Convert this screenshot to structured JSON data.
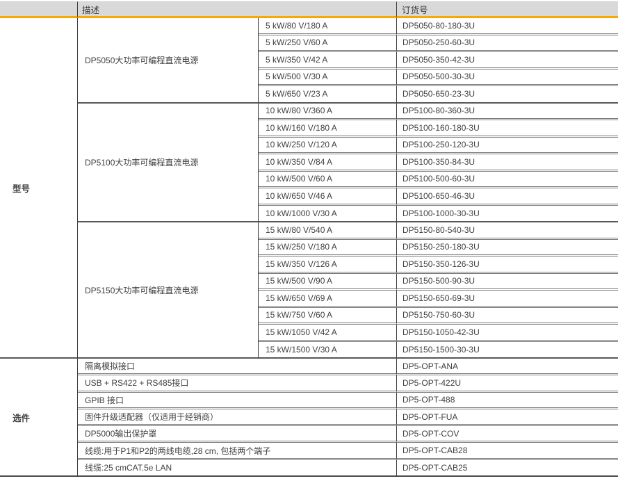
{
  "page": {
    "headers": {
      "description": "描述",
      "order_number": "订货号"
    },
    "model_section": {
      "label": "型号",
      "groups": [
        {
          "description": "DP5050大功率可编程直流电源",
          "rows": [
            {
              "spec": "5 kW/80 V/180 A",
              "order": "DP5050-80-180-3U"
            },
            {
              "spec": "5 kW/250 V/60 A",
              "order": "DP5050-250-60-3U"
            },
            {
              "spec": "5 kW/350 V/42 A",
              "order": "DP5050-350-42-3U"
            },
            {
              "spec": "5 kW/500 V/30 A",
              "order": "DP5050-500-30-3U"
            },
            {
              "spec": "5 kW/650 V/23 A",
              "order": "DP5050-650-23-3U"
            }
          ]
        },
        {
          "description": "DP5100大功率可编程直流电源",
          "rows": [
            {
              "spec": "10 kW/80 V/360 A",
              "order": "DP5100-80-360-3U"
            },
            {
              "spec": "10 kW/160 V/180 A",
              "order": "DP5100-160-180-3U"
            },
            {
              "spec": "10 kW/250 V/120 A",
              "order": "DP5100-250-120-3U"
            },
            {
              "spec": "10 kW/350 V/84 A",
              "order": "DP5100-350-84-3U"
            },
            {
              "spec": "10 kW/500 V/60 A",
              "order": "DP5100-500-60-3U"
            },
            {
              "spec": "10 kW/650 V/46 A",
              "order": "DP5100-650-46-3U"
            },
            {
              "spec": "10 kW/1000 V/30 A",
              "order": "DP5100-1000-30-3U"
            }
          ]
        },
        {
          "description": "DP5150大功率可编程直流电源",
          "rows": [
            {
              "spec": "15 kW/80 V/540 A",
              "order": "DP5150-80-540-3U"
            },
            {
              "spec": "15 kW/250 V/180 A",
              "order": "DP5150-250-180-3U"
            },
            {
              "spec": "15 kW/350 V/126 A",
              "order": "DP5150-350-126-3U"
            },
            {
              "spec": "15 kW/500 V/90 A",
              "order": "DP5150-500-90-3U"
            },
            {
              "spec": "15 kW/650 V/69 A",
              "order": "DP5150-650-69-3U"
            },
            {
              "spec": "15 kW/750 V/60 A",
              "order": "DP5150-750-60-3U"
            },
            {
              "spec": "15 kW/1050 V/42 A",
              "order": "DP5150-1050-42-3U"
            },
            {
              "spec": "15 kW/1500 V/30 A",
              "order": "DP5150-1500-30-3U"
            }
          ]
        }
      ]
    },
    "options_section": {
      "label": "选件",
      "rows": [
        {
          "description": "隔离模拟接口",
          "order": "DP5-OPT-ANA"
        },
        {
          "description": "USB + RS422 + RS485接口",
          "order": "DP5-OPT-422U"
        },
        {
          "description": "GPIB 接口",
          "order": "DP5-OPT-488"
        },
        {
          "description": "固件升级适配器（仅适用于经销商）",
          "order": "DP5-OPT-FUA"
        },
        {
          "description": "DP5000输出保护罩",
          "order": "DP5-OPT-COV"
        },
        {
          "description": "线缆:用于P1和P2的两线电缆,28 cm, 包括两个端子",
          "order": "DP5-OPT-CAB28"
        },
        {
          "description": "线缆:25 cmCAT.5e LAN",
          "order": "DP5-OPT-CAB25"
        }
      ]
    },
    "colors": {
      "accent_orange": "#F9A800",
      "header_bg": "#D9D9D9"
    }
  }
}
